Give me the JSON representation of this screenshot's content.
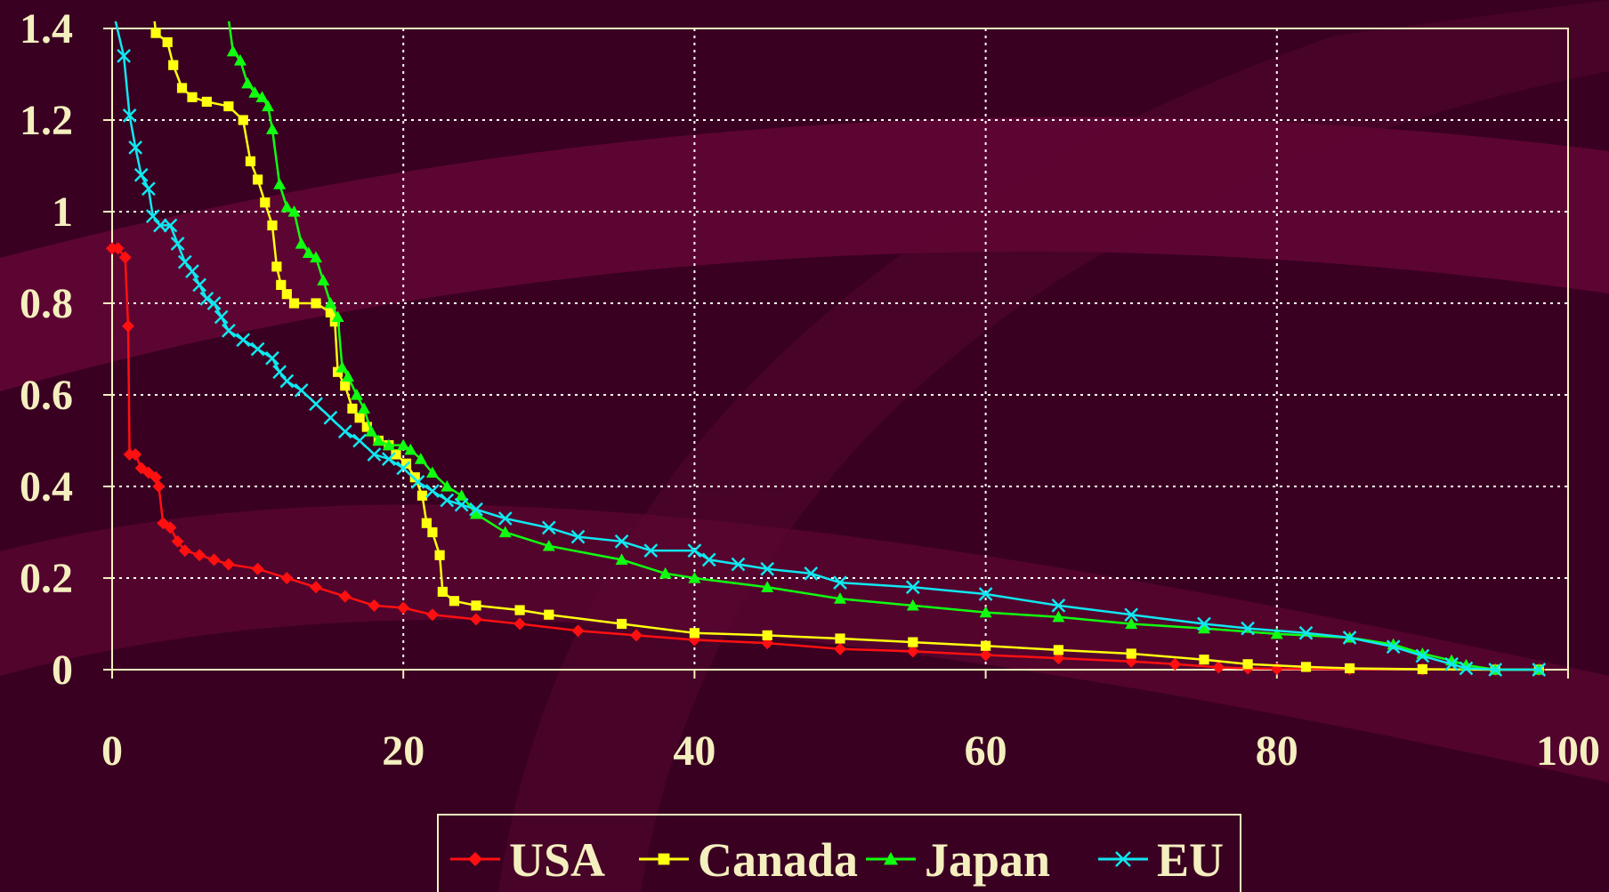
{
  "chart_data": {
    "type": "line",
    "title": "",
    "xlabel": "",
    "ylabel": "",
    "xlim": [
      0,
      100
    ],
    "ylim": [
      0,
      1.4
    ],
    "x_ticks": [
      "0",
      "20",
      "40",
      "60",
      "80",
      "100"
    ],
    "y_ticks": [
      "0",
      "0.2",
      "0.4",
      "0.6",
      "0.8",
      "1",
      "1.2",
      "1.4"
    ],
    "grid": true,
    "legend_position": "bottom-center",
    "colors": {
      "background": "#3a0022",
      "plot_border": "#f5efc0",
      "grid": "#ffffff",
      "text": "#f5efc0"
    },
    "series": [
      {
        "name": "USA",
        "color": "#ff1010",
        "marker": "diamond",
        "points": [
          [
            0,
            0.92
          ],
          [
            0.4,
            0.92
          ],
          [
            0.9,
            0.9
          ],
          [
            1.1,
            0.75
          ],
          [
            1.2,
            0.47
          ],
          [
            1.6,
            0.47
          ],
          [
            2,
            0.44
          ],
          [
            2.5,
            0.43
          ],
          [
            3,
            0.42
          ],
          [
            3.2,
            0.4
          ],
          [
            3.5,
            0.32
          ],
          [
            4,
            0.31
          ],
          [
            4.5,
            0.28
          ],
          [
            5,
            0.26
          ],
          [
            6,
            0.25
          ],
          [
            7,
            0.24
          ],
          [
            8,
            0.23
          ],
          [
            10,
            0.22
          ],
          [
            12,
            0.2
          ],
          [
            14,
            0.18
          ],
          [
            16,
            0.16
          ],
          [
            18,
            0.14
          ],
          [
            20,
            0.135
          ],
          [
            22,
            0.12
          ],
          [
            25,
            0.11
          ],
          [
            28,
            0.1
          ],
          [
            32,
            0.085
          ],
          [
            36,
            0.075
          ],
          [
            40,
            0.065
          ],
          [
            45,
            0.058
          ],
          [
            50,
            0.045
          ],
          [
            55,
            0.04
          ],
          [
            60,
            0.032
          ],
          [
            65,
            0.025
          ],
          [
            70,
            0.018
          ],
          [
            73,
            0.012
          ],
          [
            76,
            0.005
          ],
          [
            78,
            0.003
          ],
          [
            80,
            0.002
          ],
          [
            85,
            0.001
          ],
          [
            90,
            0.001
          ],
          [
            95,
            0
          ],
          [
            98,
            0
          ]
        ]
      },
      {
        "name": "Canada",
        "color": "#ffff10",
        "marker": "square",
        "points": [
          [
            2.8,
            1.45
          ],
          [
            3,
            1.39
          ],
          [
            3.8,
            1.37
          ],
          [
            4.2,
            1.32
          ],
          [
            4.8,
            1.27
          ],
          [
            5.5,
            1.25
          ],
          [
            6.5,
            1.24
          ],
          [
            8,
            1.23
          ],
          [
            9,
            1.2
          ],
          [
            9.5,
            1.11
          ],
          [
            10,
            1.07
          ],
          [
            10.5,
            1.02
          ],
          [
            11,
            0.97
          ],
          [
            11.3,
            0.88
          ],
          [
            11.6,
            0.84
          ],
          [
            12,
            0.82
          ],
          [
            12.5,
            0.8
          ],
          [
            14,
            0.8
          ],
          [
            15,
            0.78
          ],
          [
            15.3,
            0.76
          ],
          [
            15.5,
            0.65
          ],
          [
            16,
            0.62
          ],
          [
            16.5,
            0.57
          ],
          [
            17,
            0.55
          ],
          [
            17.5,
            0.53
          ],
          [
            18.3,
            0.5
          ],
          [
            19,
            0.49
          ],
          [
            19.5,
            0.47
          ],
          [
            20.2,
            0.45
          ],
          [
            20.8,
            0.42
          ],
          [
            21.3,
            0.38
          ],
          [
            21.6,
            0.32
          ],
          [
            22,
            0.3
          ],
          [
            22.5,
            0.25
          ],
          [
            22.7,
            0.17
          ],
          [
            23.5,
            0.15
          ],
          [
            25,
            0.14
          ],
          [
            28,
            0.13
          ],
          [
            30,
            0.12
          ],
          [
            35,
            0.1
          ],
          [
            40,
            0.08
          ],
          [
            45,
            0.075
          ],
          [
            50,
            0.068
          ],
          [
            55,
            0.06
          ],
          [
            60,
            0.052
          ],
          [
            65,
            0.043
          ],
          [
            70,
            0.035
          ],
          [
            75,
            0.022
          ],
          [
            78,
            0.012
          ],
          [
            82,
            0.006
          ],
          [
            85,
            0.003
          ],
          [
            90,
            0.001
          ],
          [
            95,
            0
          ],
          [
            98,
            0
          ]
        ]
      },
      {
        "name": "Japan",
        "color": "#10ff10",
        "marker": "triangle",
        "points": [
          [
            8,
            1.42
          ],
          [
            8.3,
            1.35
          ],
          [
            8.8,
            1.33
          ],
          [
            9.3,
            1.28
          ],
          [
            9.8,
            1.26
          ],
          [
            10.3,
            1.25
          ],
          [
            10.7,
            1.23
          ],
          [
            11,
            1.18
          ],
          [
            11.5,
            1.06
          ],
          [
            12,
            1.01
          ],
          [
            12.5,
            1.0
          ],
          [
            13,
            0.93
          ],
          [
            13.5,
            0.91
          ],
          [
            14,
            0.9
          ],
          [
            14.5,
            0.85
          ],
          [
            15,
            0.8
          ],
          [
            15.5,
            0.77
          ],
          [
            15.8,
            0.66
          ],
          [
            16.2,
            0.64
          ],
          [
            16.8,
            0.6
          ],
          [
            17.3,
            0.57
          ],
          [
            17.8,
            0.52
          ],
          [
            18.3,
            0.5
          ],
          [
            19,
            0.49
          ],
          [
            20,
            0.49
          ],
          [
            20.5,
            0.48
          ],
          [
            21.2,
            0.46
          ],
          [
            22,
            0.43
          ],
          [
            23,
            0.4
          ],
          [
            24,
            0.38
          ],
          [
            25,
            0.34
          ],
          [
            27,
            0.3
          ],
          [
            30,
            0.27
          ],
          [
            35,
            0.24
          ],
          [
            38,
            0.21
          ],
          [
            40,
            0.2
          ],
          [
            45,
            0.18
          ],
          [
            50,
            0.155
          ],
          [
            55,
            0.14
          ],
          [
            60,
            0.125
          ],
          [
            65,
            0.115
          ],
          [
            70,
            0.1
          ],
          [
            75,
            0.09
          ],
          [
            80,
            0.078
          ],
          [
            85,
            0.07
          ],
          [
            88,
            0.055
          ],
          [
            90,
            0.035
          ],
          [
            92,
            0.02
          ],
          [
            93,
            0.01
          ],
          [
            95,
            0
          ],
          [
            98,
            0
          ]
        ]
      },
      {
        "name": "EU",
        "color": "#10e8f0",
        "marker": "x",
        "points": [
          [
            0.2,
            1.42
          ],
          [
            0.8,
            1.34
          ],
          [
            1.2,
            1.21
          ],
          [
            1.6,
            1.14
          ],
          [
            2,
            1.08
          ],
          [
            2.5,
            1.05
          ],
          [
            2.8,
            0.99
          ],
          [
            3.3,
            0.97
          ],
          [
            4,
            0.97
          ],
          [
            4.5,
            0.93
          ],
          [
            5,
            0.89
          ],
          [
            5.5,
            0.87
          ],
          [
            6,
            0.84
          ],
          [
            6.5,
            0.81
          ],
          [
            7,
            0.8
          ],
          [
            7.5,
            0.77
          ],
          [
            8,
            0.74
          ],
          [
            9,
            0.72
          ],
          [
            10,
            0.7
          ],
          [
            11,
            0.68
          ],
          [
            11.5,
            0.65
          ],
          [
            12,
            0.63
          ],
          [
            13,
            0.61
          ],
          [
            14,
            0.58
          ],
          [
            15,
            0.55
          ],
          [
            16,
            0.52
          ],
          [
            17,
            0.5
          ],
          [
            18,
            0.47
          ],
          [
            19,
            0.46
          ],
          [
            20,
            0.44
          ],
          [
            21,
            0.41
          ],
          [
            22,
            0.39
          ],
          [
            23,
            0.37
          ],
          [
            24,
            0.36
          ],
          [
            25,
            0.35
          ],
          [
            27,
            0.33
          ],
          [
            30,
            0.31
          ],
          [
            32,
            0.29
          ],
          [
            35,
            0.28
          ],
          [
            37,
            0.26
          ],
          [
            40,
            0.26
          ],
          [
            41,
            0.24
          ],
          [
            43,
            0.23
          ],
          [
            45,
            0.22
          ],
          [
            48,
            0.21
          ],
          [
            50,
            0.19
          ],
          [
            55,
            0.18
          ],
          [
            60,
            0.165
          ],
          [
            65,
            0.14
          ],
          [
            70,
            0.12
          ],
          [
            75,
            0.1
          ],
          [
            78,
            0.09
          ],
          [
            82,
            0.08
          ],
          [
            85,
            0.07
          ],
          [
            88,
            0.05
          ],
          [
            90,
            0.03
          ],
          [
            92,
            0.012
          ],
          [
            93,
            0.003
          ],
          [
            95,
            0
          ],
          [
            98,
            0
          ]
        ]
      }
    ]
  }
}
